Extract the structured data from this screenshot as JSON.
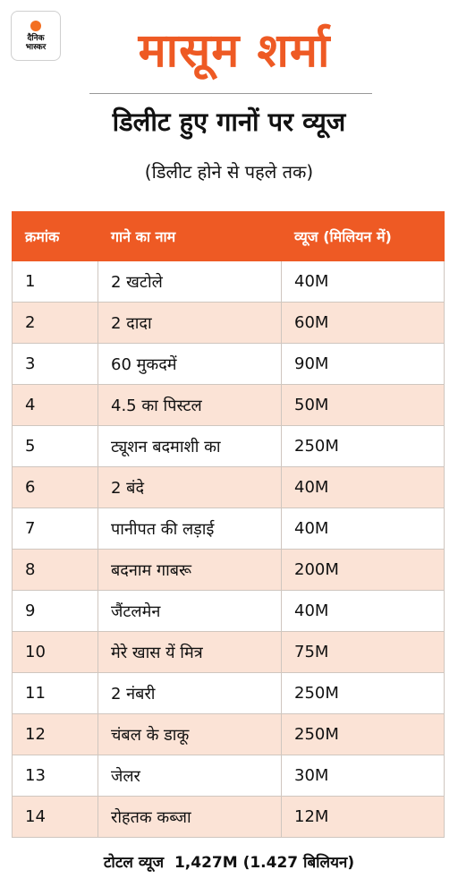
{
  "logo": {
    "line1": "दैनिक",
    "line2": "भास्कर"
  },
  "title": "मासूम शर्मा",
  "subtitle": "डिलीट हुए गानों पर व्यूज",
  "note": "(डिलीट होने से पहले तक)",
  "colors": {
    "accent": "#ee5a24",
    "stripe": "#fbe3d6"
  },
  "table": {
    "headers": [
      "क्रमांक",
      "गाने का नाम",
      "व्यूज (मिलियन में)"
    ],
    "rows": [
      [
        "1",
        "2 खटोले",
        "40M"
      ],
      [
        "2",
        "2 दादा",
        "60M"
      ],
      [
        "3",
        "60 मुकदमें",
        "90M"
      ],
      [
        "4",
        "4.5 का पिस्टल",
        "50M"
      ],
      [
        "5",
        "ट्यूशन बदमाशी का",
        "250M"
      ],
      [
        "6",
        "2 बंदे",
        "40M"
      ],
      [
        "7",
        "पानीपत की लड़ाई",
        "40M"
      ],
      [
        "8",
        "बदनाम गाबरू",
        "200M"
      ],
      [
        "9",
        "जैंटलमेन",
        "40M"
      ],
      [
        "10",
        "मेरे खास यें मित्र",
        "75M"
      ],
      [
        "11",
        "2 नंबरी",
        "250M"
      ],
      [
        "12",
        "चंबल के डाकू",
        "250M"
      ],
      [
        "13",
        "जेलर",
        "30M"
      ],
      [
        "14",
        "रोहतक कब्जा",
        "12M"
      ]
    ]
  },
  "total": {
    "label": "टोटल व्यूज",
    "value": "1,427M (1.427 बिलियन)"
  }
}
